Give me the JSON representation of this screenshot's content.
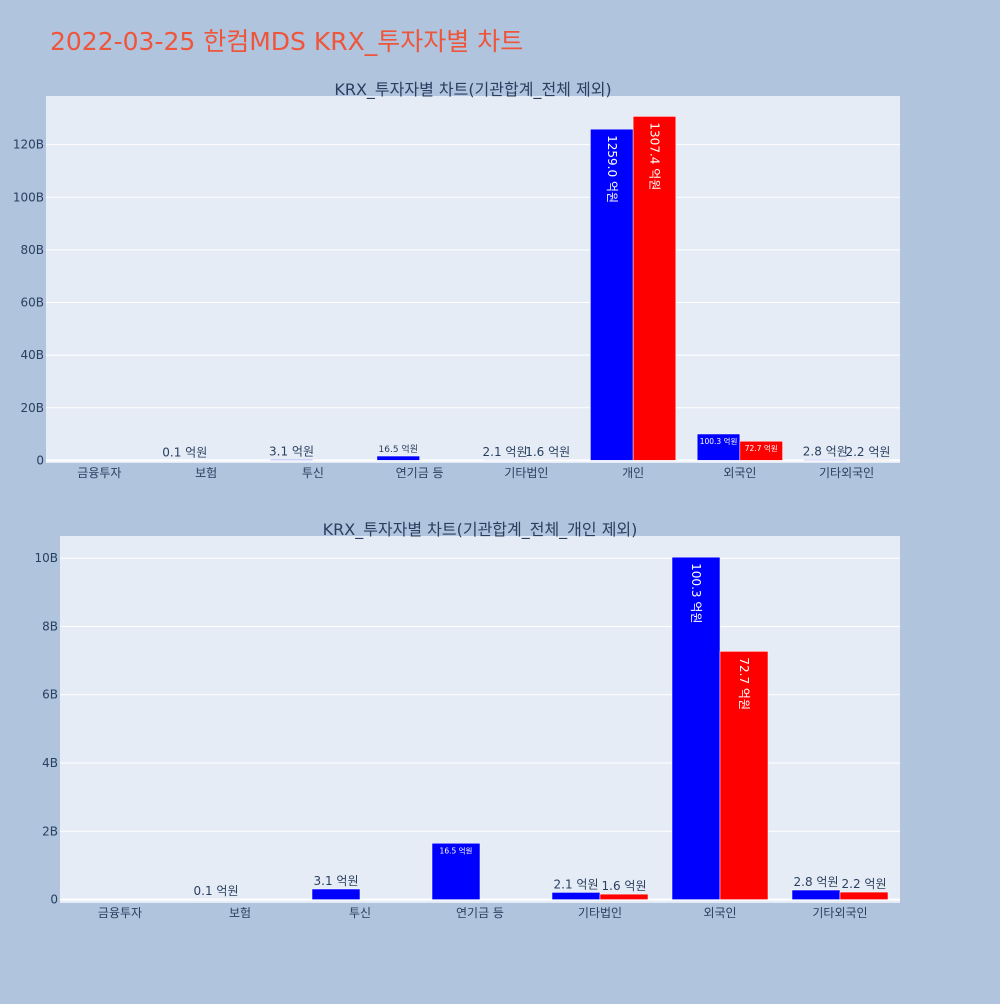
{
  "page": {
    "title": "2022-03-25 한컴MDS KRX_투자자별 차트",
    "background": "#b0c4de",
    "title_color": "#ef553b"
  },
  "chart_data": [
    {
      "type": "bar",
      "title": "KRX_투자자별 차트(기관합계_전체 제외)",
      "categories": [
        "금융투자",
        "보험",
        "투신",
        "연기금 등",
        "기타법인",
        "개인",
        "외국인",
        "기타외국인"
      ],
      "series": [
        {
          "color": "#0000ff",
          "values": [
            0,
            0.01,
            0.31,
            1.65,
            0.21,
            125.9,
            10.03,
            0.28
          ],
          "labels": [
            "",
            "0.1 억원",
            "3.1 억원",
            "16.5 억원",
            "2.1 억원",
            "1259.0 억원",
            "100.3 억원",
            "2.8 억원"
          ]
        },
        {
          "color": "#ff0000",
          "values": [
            0,
            0,
            0,
            0,
            0.16,
            130.74,
            7.27,
            0.22
          ],
          "labels": [
            "",
            "",
            "",
            "",
            "1.6 억원",
            "1307.4 억원",
            "72.7 억원",
            "2.2 억원"
          ]
        }
      ],
      "ylim": [
        -1,
        138.5
      ],
      "yticks": [
        0,
        20,
        40,
        60,
        80,
        100,
        120
      ],
      "ytick_labels": [
        "0",
        "20B",
        "40B",
        "60B",
        "80B",
        "100B",
        "120B"
      ],
      "grid": true,
      "plot_background": "#e5ecf6"
    },
    {
      "type": "bar",
      "title": "KRX_투자자별 차트(기관합계_전체_개인 제외)",
      "categories": [
        "금융투자",
        "보험",
        "투신",
        "연기금 등",
        "기타법인",
        "외국인",
        "기타외국인"
      ],
      "series": [
        {
          "color": "#0000ff",
          "values": [
            0,
            0.01,
            0.31,
            1.65,
            0.21,
            10.03,
            0.28
          ],
          "labels": [
            "",
            "0.1 억원",
            "3.1 억원",
            "16.5 억원",
            "2.1 억원",
            "100.3 억원",
            "2.8 억원"
          ]
        },
        {
          "color": "#ff0000",
          "values": [
            0,
            0,
            0,
            0,
            0.16,
            7.27,
            0.22
          ],
          "labels": [
            "",
            "",
            "",
            "",
            "1.6 억원",
            "72.7 억원",
            "2.2 억원"
          ]
        }
      ],
      "ylim": [
        -0.1,
        10.65
      ],
      "yticks": [
        0,
        2,
        4,
        6,
        8,
        10
      ],
      "ytick_labels": [
        "0",
        "2B",
        "4B",
        "6B",
        "8B",
        "10B"
      ],
      "grid": true,
      "plot_background": "#e5ecf6"
    }
  ]
}
